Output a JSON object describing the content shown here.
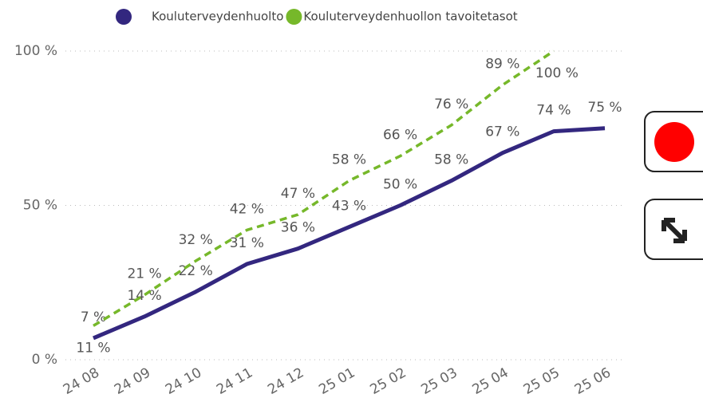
{
  "chart_data": {
    "type": "line",
    "categories": [
      "24 08",
      "24 09",
      "24 10",
      "24 11",
      "24 12",
      "25 01",
      "25 02",
      "25 03",
      "25 04",
      "25 05",
      "25 06"
    ],
    "series": [
      {
        "name": "Kouluterveydenhuolto",
        "color": "#33277f",
        "dashed": false,
        "values": [
          7,
          14,
          22,
          31,
          36,
          43,
          50,
          58,
          67,
          74,
          75
        ],
        "value_labels": [
          "7 %",
          "14 %",
          "22 %",
          "31 %",
          "36 %",
          "43 %",
          "50 %",
          "58 %",
          "67 %",
          "74 %",
          "75 %"
        ]
      },
      {
        "name": "Kouluterveydenhuollon tavoitetasot",
        "color": "#76b82a",
        "dashed": true,
        "values": [
          11,
          21,
          32,
          42,
          47,
          58,
          66,
          76,
          89,
          100,
          null
        ],
        "value_labels": [
          "11 %",
          "21 %",
          "32 %",
          "42 %",
          "47 %",
          "58 %",
          "66 %",
          "76 %",
          "89 %",
          "100 %",
          null
        ]
      }
    ],
    "ylim": [
      0,
      100
    ],
    "yticks": [
      {
        "value": 0,
        "label": "0 %"
      },
      {
        "value": 50,
        "label": "50 %"
      },
      {
        "value": 100,
        "label": "100 %"
      }
    ],
    "grid": true,
    "legend": "top"
  }
}
